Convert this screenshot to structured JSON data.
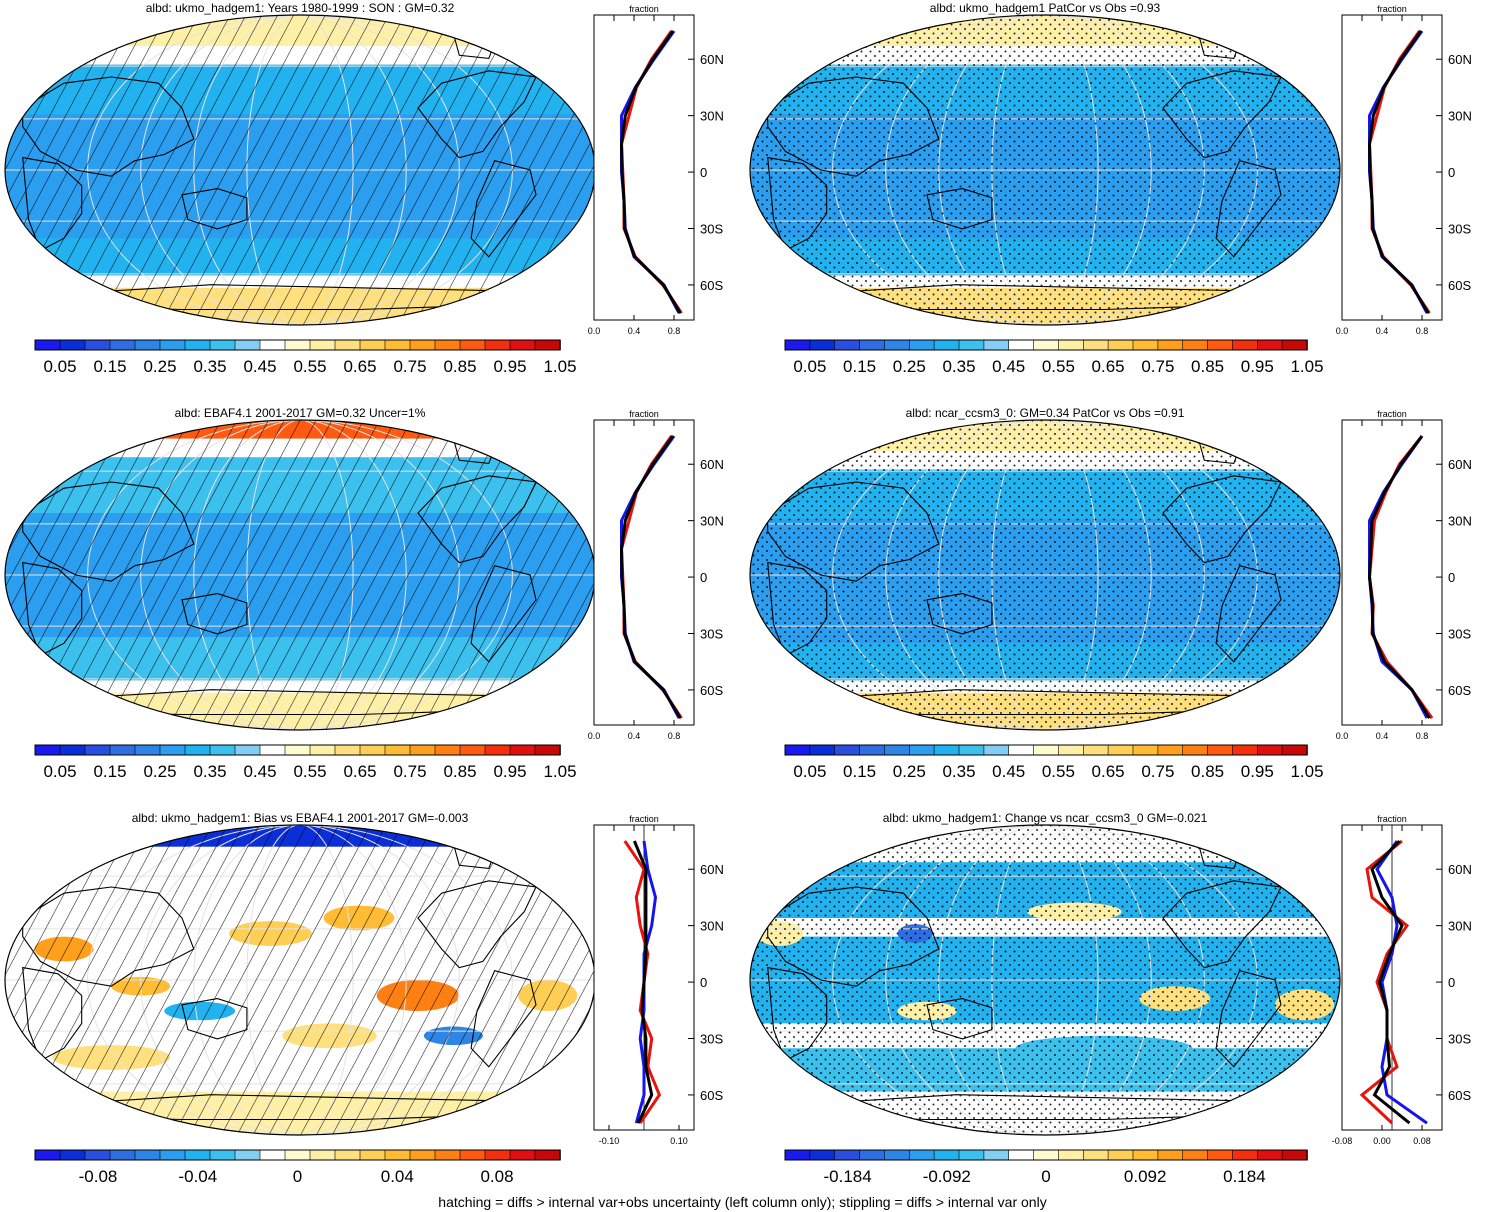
{
  "footnote": "hatching = diffs > internal var+obs uncertainty (left column only); stippling = diffs > internal var only",
  "profile_title": "fraction",
  "lat_labels": [
    "60N",
    "30N",
    "0",
    "30S",
    "60S"
  ],
  "colors": {
    "scale": [
      "#1a1aee",
      "#0a2ed8",
      "#2a4fe0",
      "#2f6ee2",
      "#2f85e6",
      "#2b9ef0",
      "#22b2ef",
      "#3cc0ee",
      "#84cef3",
      "#ffffff",
      "#fffbd0",
      "#fff0a8",
      "#ffe07e",
      "#ffcf55",
      "#ffbc34",
      "#ff9f1c",
      "#ff8012",
      "#ff5a10",
      "#f2300e",
      "#e01010",
      "#c60808"
    ],
    "line_model": "#e8130c",
    "line_obs": "#1515ee",
    "line_mean": "#000000"
  },
  "panels": [
    {
      "title": "albd: ukmo_hadgem1: Years 1980-1999 : SON : GM=0.32",
      "overlay": "hatch",
      "map_field": "mean",
      "colorbar_labels": [
        "0.05",
        "0.15",
        "0.25",
        "0.35",
        "0.45",
        "0.55",
        "0.65",
        "0.75",
        "0.85",
        "0.95",
        "1.05"
      ],
      "profile_ticks": [
        "0.0",
        "0.4",
        "0.8"
      ],
      "profile_type": "mean"
    },
    {
      "title": "albd: ukmo_hadgem1 PatCor vs Obs =0.93",
      "overlay": "stipple",
      "map_field": "mean",
      "colorbar_labels": [
        "0.05",
        "0.15",
        "0.25",
        "0.35",
        "0.45",
        "0.55",
        "0.65",
        "0.75",
        "0.85",
        "0.95",
        "1.05"
      ],
      "profile_ticks": [
        "0.0",
        "0.4",
        "0.8"
      ],
      "profile_type": "mean"
    },
    {
      "title": "albd: EBAF4.1 2001-2017 GM=0.32 Uncer=1%",
      "overlay": "hatch",
      "map_field": "obs",
      "colorbar_labels": [
        "0.05",
        "0.15",
        "0.25",
        "0.35",
        "0.45",
        "0.55",
        "0.65",
        "0.75",
        "0.85",
        "0.95",
        "1.05"
      ],
      "profile_ticks": [
        "0.0",
        "0.4",
        "0.8"
      ],
      "profile_type": "obs"
    },
    {
      "title": "albd: ncar_ccsm3_0: GM=0.34 PatCor vs Obs =0.91",
      "overlay": "stipple",
      "map_field": "mean",
      "colorbar_labels": [
        "0.05",
        "0.15",
        "0.25",
        "0.35",
        "0.45",
        "0.55",
        "0.65",
        "0.75",
        "0.85",
        "0.95",
        "1.05"
      ],
      "profile_ticks": [
        "0.0",
        "0.4",
        "0.8"
      ],
      "profile_type": "mean"
    },
    {
      "title": "albd: ukmo_hadgem1: Bias vs EBAF4.1 2001-2017  GM=-0.003",
      "overlay": "hatch",
      "map_field": "bias",
      "colorbar_labels": [
        "-0.08",
        "-0.04",
        "0",
        "0.04",
        "0.08"
      ],
      "profile_ticks": [
        "-0.10",
        "0.10"
      ],
      "profile_type": "bias"
    },
    {
      "title": "albd: ukmo_hadgem1: Change vs ncar_ccsm3_0 GM=-0.021",
      "overlay": "stipple",
      "map_field": "change",
      "colorbar_labels": [
        "-0.184",
        "-0.092",
        "0",
        "0.092",
        "0.184"
      ],
      "profile_ticks": [
        "-0.08",
        "0.00",
        "0.08"
      ],
      "profile_type": "change"
    }
  ],
  "chart_data": {
    "type": "line",
    "title": "",
    "xlabel": "fraction",
    "ylabel": "",
    "y": [
      -75,
      -60,
      -45,
      -30,
      -15,
      0,
      15,
      30,
      45,
      60,
      75
    ],
    "series_by_panel": [
      {
        "panel": 0,
        "xlim": [
          0.0,
          0.8
        ],
        "series": [
          {
            "values": [
              0.7,
              0.55,
              0.33,
              0.24,
              0.24,
              0.23,
              0.22,
              0.28,
              0.34,
              0.46,
              0.62
            ]
          },
          {
            "values": [
              0.68,
              0.56,
              0.32,
              0.25,
              0.24,
              0.22,
              0.22,
              0.22,
              0.33,
              0.48,
              0.64
            ]
          }
        ]
      },
      {
        "panel": 1,
        "xlim": [
          0.0,
          0.8
        ],
        "series": [
          {
            "values": [
              0.7,
              0.55,
              0.33,
              0.24,
              0.24,
              0.23,
              0.22,
              0.28,
              0.34,
              0.46,
              0.62
            ]
          },
          {
            "values": [
              0.68,
              0.56,
              0.32,
              0.25,
              0.24,
              0.22,
              0.22,
              0.22,
              0.33,
              0.48,
              0.64
            ]
          }
        ]
      },
      {
        "panel": 2,
        "xlim": [
          0.0,
          0.8
        ],
        "series": [
          {
            "values": [
              0.7,
              0.55,
              0.33,
              0.24,
              0.24,
              0.23,
              0.22,
              0.28,
              0.34,
              0.46,
              0.62
            ]
          },
          {
            "values": [
              0.68,
              0.56,
              0.32,
              0.25,
              0.24,
              0.22,
              0.22,
              0.22,
              0.33,
              0.48,
              0.64
            ]
          }
        ]
      },
      {
        "panel": 3,
        "xlim": [
          0.0,
          0.8
        ],
        "series": [
          {
            "values": [
              0.72,
              0.56,
              0.36,
              0.24,
              0.25,
              0.22,
              0.24,
              0.26,
              0.35,
              0.46,
              0.64
            ]
          },
          {
            "values": [
              0.68,
              0.56,
              0.32,
              0.25,
              0.24,
              0.22,
              0.22,
              0.22,
              0.33,
              0.48,
              0.64
            ]
          }
        ]
      },
      {
        "panel": 4,
        "xlim": [
          -0.13,
          0.13
        ],
        "series": [
          {
            "values": [
              -0.01,
              0.04,
              0.01,
              0.02,
              -0.01,
              0.0,
              0.01,
              -0.01,
              -0.02,
              0.0,
              -0.05
            ]
          },
          {
            "values": [
              -0.02,
              0.0,
              0.0,
              -0.01,
              0.0,
              0.0,
              0.0,
              0.02,
              0.03,
              0.01,
              0.0
            ]
          }
        ]
      },
      {
        "panel": 5,
        "xlim": [
          -0.1,
          0.1
        ],
        "series": [
          {
            "values": [
              0.0,
              -0.06,
              0.01,
              -0.01,
              -0.01,
              -0.03,
              -0.01,
              0.03,
              -0.04,
              -0.05,
              0.02
            ]
          },
          {
            "values": [
              0.07,
              -0.01,
              -0.02,
              -0.01,
              -0.01,
              -0.02,
              0.0,
              0.01,
              0.0,
              -0.03,
              0.01
            ]
          }
        ]
      }
    ]
  }
}
